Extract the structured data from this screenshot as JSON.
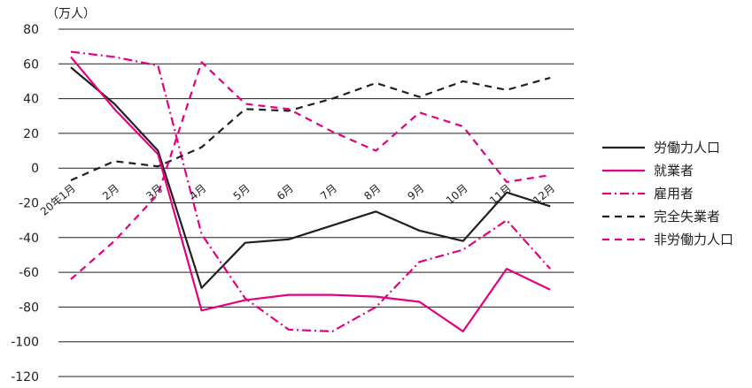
{
  "chart_data": {
    "type": "line",
    "unit_label": "（万人）",
    "categories": [
      "20年1月",
      "2月",
      "3月",
      "4月",
      "5月",
      "6月",
      "7月",
      "8月",
      "9月",
      "10月",
      "11月",
      "12月"
    ],
    "ylim": [
      -120,
      80
    ],
    "yticks": [
      80,
      60,
      40,
      20,
      0,
      -20,
      -40,
      -60,
      -80,
      -100,
      -120
    ],
    "grid": true,
    "legend_position": "right",
    "series": [
      {
        "name": "労働力人口",
        "color": "#231f20",
        "dash": "solid",
        "values": [
          58,
          37,
          10,
          -69,
          -43,
          -41,
          -33,
          -25,
          -36,
          -42,
          -14,
          -22
        ]
      },
      {
        "name": "就業者",
        "color": "#e4007f",
        "dash": "solid",
        "values": [
          64,
          34,
          8,
          -82,
          -76,
          -73,
          -73,
          -74,
          -77,
          -94,
          -58,
          -70
        ]
      },
      {
        "name": "雇用者",
        "color": "#e4007f",
        "dash": "dashdot",
        "values": [
          67,
          64,
          59,
          -38,
          -75,
          -93,
          -94,
          -80,
          -54,
          -47,
          -30,
          -58
        ]
      },
      {
        "name": "完全失業者",
        "color": "#231f20",
        "dash": "dash",
        "values": [
          -7,
          4,
          1,
          12,
          34,
          33,
          40,
          49,
          41,
          50,
          45,
          52
        ]
      },
      {
        "name": "非労働力人口",
        "color": "#e4007f",
        "dash": "dash",
        "values": [
          -64,
          -42,
          -15,
          61,
          37,
          34,
          21,
          10,
          32,
          24,
          -8,
          -4
        ]
      }
    ]
  }
}
